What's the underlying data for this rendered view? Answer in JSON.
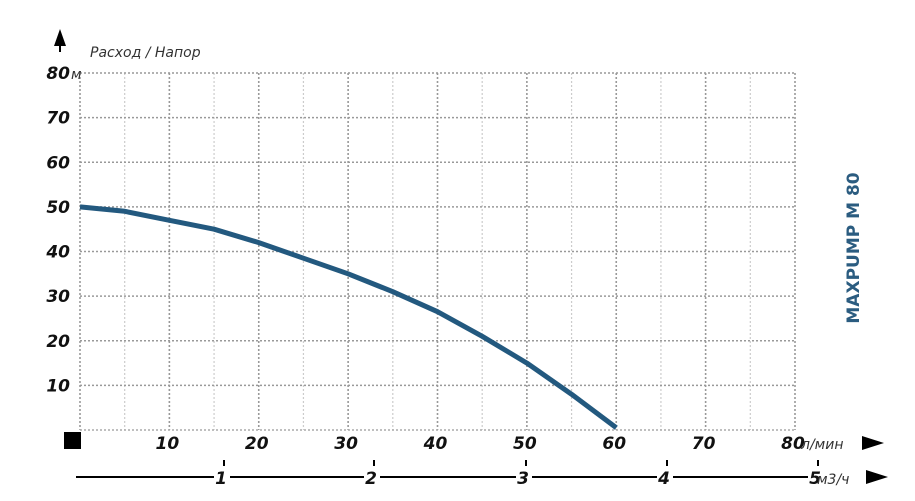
{
  "chart_data": {
    "type": "line",
    "title": "MAXPUMP M 80",
    "ylabel": "Расход / Напор",
    "y_unit": "м",
    "x_unit": "л/мин",
    "x2_unit": "м3/ч",
    "xlim": [
      0,
      80
    ],
    "ylim": [
      0,
      80
    ],
    "x_ticks": [
      "10",
      "20",
      "30",
      "40",
      "50",
      "60",
      "70",
      "80"
    ],
    "y_ticks": [
      "10",
      "20",
      "30",
      "40",
      "50",
      "60",
      "70",
      "80"
    ],
    "x2_ticks": [
      "1",
      "2",
      "3",
      "4",
      "5"
    ],
    "grid": true,
    "series": [
      {
        "x": [
          0,
          5,
          10,
          15,
          20,
          25,
          30,
          35,
          40,
          45,
          50,
          55,
          60
        ],
        "y": [
          50,
          49,
          47,
          45,
          42,
          38.5,
          35,
          31,
          26.5,
          21,
          15,
          8,
          0.5
        ]
      }
    ],
    "colors": {
      "curve": "#23597f",
      "title": "#2b5c80"
    }
  }
}
